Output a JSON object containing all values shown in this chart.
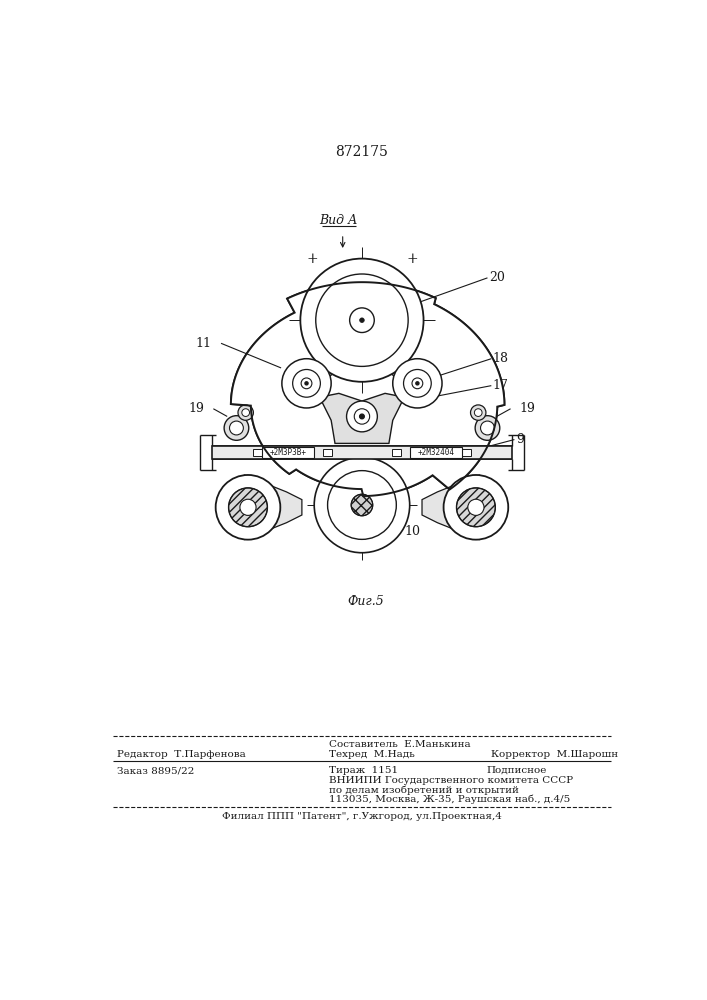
{
  "patent_number": "872175",
  "fig_label": "Фиг.5",
  "view_label": "Вид А",
  "background_color": "#ffffff",
  "text_color": "#1a1a1a",
  "line_color": "#1a1a1a",
  "footer": {
    "editor": "Редактор  Т.Парфенова",
    "compositor": "Составитель  Е.Манькина",
    "techred": "Техред  М.Надь",
    "corrector": "Корректор  М.Шарошн",
    "order": "Заказ 8895/22",
    "circulation": "Тираж  1151",
    "subscription": "Подписное",
    "org_line1": "ВНИИПИ Государственного комитета СССР",
    "org_line2": "по делам изобретений и открытий",
    "org_line3": "113035, Москва, Ж-35, Раушская наб., д.4/5",
    "branch": "Филиал ППП \"Патент\", г.Ужгород, ул.Проектная,4"
  }
}
